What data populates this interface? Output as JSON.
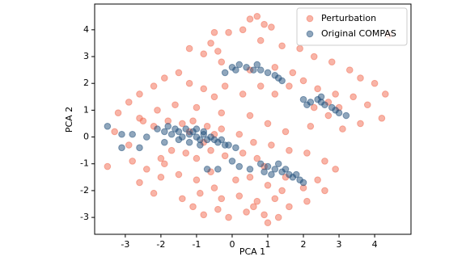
{
  "chart_data": {
    "type": "scatter",
    "xlabel": "PCA 1",
    "ylabel": "PCA 2",
    "xlim": [
      -3.86,
      5.02
    ],
    "ylim": [
      -3.63,
      4.96
    ],
    "xticks": [
      -3,
      -2,
      -1,
      0,
      1,
      2,
      3,
      4
    ],
    "yticks": [
      -3,
      -2,
      -1,
      0,
      1,
      2,
      3,
      4
    ],
    "legend": "upper right",
    "alpha": 0.5,
    "series": [
      {
        "name": "Perturbation",
        "color": "#f26a4f",
        "x": [
          0.5,
          0.7,
          0.9,
          -0.5,
          -0.6,
          -0.1,
          0.3,
          1.1,
          -1.2,
          -0.8,
          -0.4,
          0.8,
          1.4,
          1.9,
          2.3,
          2.8,
          3.3,
          3.6,
          4.0,
          4.3,
          4.4,
          -1.5,
          -1.9,
          -2.2,
          -2.6,
          -2.9,
          -1.2,
          -0.8,
          -0.5,
          -0.2,
          0.3,
          0.8,
          1.2,
          1.6,
          2.0,
          2.4,
          2.9,
          3.4,
          3.8,
          4.2,
          3.6,
          3.1,
          2.7,
          -1.6,
          -2.1,
          -2.6,
          -3.2,
          -1.0,
          -0.3,
          0.5,
          1.0,
          1.5,
          2.2,
          -3.3,
          -2.9,
          -2.5,
          -2.2,
          -1.8,
          -1.4,
          -1.1,
          -0.7,
          -0.3,
          0.2,
          0.6,
          1.1,
          1.6,
          2.1,
          2.6,
          2.9,
          -3.5,
          -2.8,
          -2.4,
          -2.0,
          -1.7,
          -1.3,
          -1.0,
          -0.6,
          -0.2,
          0.3,
          0.7,
          -2.6,
          -2.0,
          -1.5,
          -1.0,
          -0.5,
          0.1,
          0.5,
          1.0,
          1.4,
          2.0,
          2.4,
          2.6,
          -2.2,
          -1.4,
          -0.9,
          -0.3,
          0.2,
          0.7,
          1.2,
          1.6,
          2.1,
          -1.1,
          -0.4,
          0.4,
          0.9,
          1.3,
          1.0,
          -0.1,
          -0.8,
          0.6,
          -1.9,
          -1.2,
          -0.8,
          -0.5,
          0.9,
          1.5,
          2.3,
          2.7,
          3.0,
          0.5,
          -0.3,
          1.2,
          1.7,
          -0.6
        ],
        "values": [
          4.4,
          4.5,
          4.2,
          3.9,
          3.5,
          3.9,
          4.0,
          4.1,
          3.3,
          3.1,
          3.2,
          3.6,
          3.4,
          3.3,
          3.0,
          2.8,
          2.5,
          2.2,
          2.0,
          1.6,
          3.8,
          2.4,
          2.2,
          1.9,
          1.6,
          1.3,
          2.0,
          1.8,
          1.5,
          1.9,
          1.6,
          1.9,
          1.6,
          1.9,
          2.1,
          1.8,
          1.6,
          1.5,
          1.2,
          0.7,
          0.5,
          0.3,
          0.8,
          1.2,
          1.0,
          0.7,
          0.9,
          1.1,
          0.9,
          0.8,
          0.5,
          0.2,
          0.4,
          0.2,
          -0.3,
          0.6,
          0.4,
          0.6,
          0.5,
          0.6,
          0.4,
          0.3,
          0.1,
          -0.2,
          -0.3,
          -0.5,
          -0.6,
          -0.9,
          -1.2,
          -1.1,
          -0.9,
          -1.2,
          -0.8,
          -0.5,
          -0.6,
          -0.8,
          -0.5,
          -0.7,
          -0.6,
          -0.8,
          -1.7,
          -1.5,
          -1.4,
          -1.6,
          -1.9,
          -1.6,
          -1.5,
          -1.8,
          -2.0,
          -1.9,
          -1.6,
          -2.0,
          -2.1,
          -2.3,
          -2.1,
          -2.3,
          -2.2,
          -2.4,
          -2.3,
          -2.6,
          -2.4,
          -2.6,
          -2.7,
          -2.8,
          -2.9,
          -3.0,
          -3.2,
          -3.0,
          -2.9,
          -2.6,
          -1.0,
          0.2,
          -0.2,
          0.1,
          -1.1,
          -1.5,
          1.1,
          1.3,
          1.1,
          2.5,
          2.8,
          2.6,
          2.4,
          -1.3
        ]
      },
      {
        "name": "Original COMPAS",
        "color": "#1f4e79",
        "x": [
          -2.1,
          -1.9,
          -1.8,
          -1.7,
          -1.6,
          -1.5,
          -1.4,
          -1.3,
          -1.2,
          -1.1,
          -1.0,
          -1.0,
          -0.9,
          -0.8,
          -0.8,
          -0.7,
          -0.6,
          -0.5,
          -0.4,
          -0.3,
          -0.2,
          -0.1,
          0.1,
          -1.5,
          -1.2,
          -0.9,
          -2.4,
          -2.6,
          -1.9,
          -3.5,
          -3.1,
          -3.1,
          -2.8,
          -0.2,
          0.0,
          0.2,
          0.4,
          0.6,
          0.8,
          1.0,
          1.2,
          1.3,
          1.4,
          0.7,
          0.1,
          2.0,
          2.2,
          2.4,
          2.5,
          2.6,
          2.8,
          2.9,
          3.0,
          3.2,
          2.5,
          2.1,
          0.2,
          0.5,
          0.8,
          1.0,
          1.2,
          1.3,
          1.4,
          1.5,
          1.6,
          1.7,
          1.8,
          1.9,
          2.0,
          1.1,
          -0.7,
          -0.4,
          0.0,
          0.9
        ],
        "values": [
          0.3,
          0.2,
          0.4,
          0.1,
          0.3,
          0.2,
          0.0,
          0.3,
          0.1,
          0.2,
          0.0,
          0.3,
          -0.1,
          0.1,
          0.2,
          -0.1,
          0.0,
          -0.1,
          -0.2,
          -0.1,
          -0.3,
          -0.3,
          -0.4,
          -0.1,
          -0.2,
          -0.3,
          0.0,
          -0.4,
          -0.2,
          0.4,
          0.1,
          -0.4,
          0.1,
          2.4,
          2.6,
          2.7,
          2.6,
          2.5,
          2.5,
          2.4,
          2.3,
          2.2,
          2.1,
          2.7,
          2.5,
          1.4,
          1.3,
          1.4,
          1.3,
          1.2,
          1.1,
          1.0,
          0.9,
          0.8,
          1.5,
          1.2,
          -1.1,
          -1.2,
          -1.0,
          -1.1,
          -1.2,
          -1.0,
          -1.3,
          -1.2,
          -1.4,
          -1.5,
          -1.4,
          -1.6,
          -1.7,
          -1.4,
          -1.2,
          -1.2,
          -0.9,
          -1.3
        ]
      }
    ]
  }
}
